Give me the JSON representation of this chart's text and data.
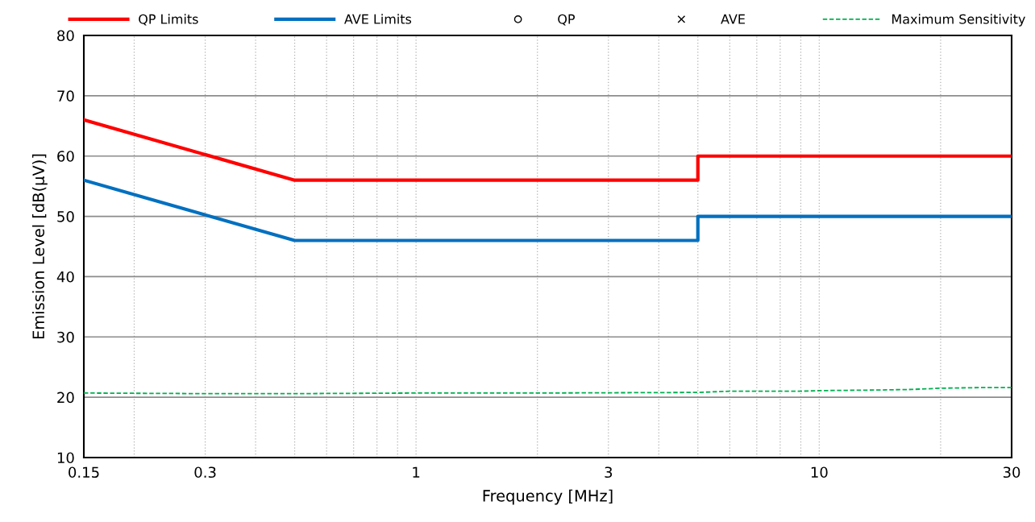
{
  "chart_data": {
    "type": "line",
    "xlabel": "Frequency [MHz]",
    "ylabel": "Emission Level [dB(µV)]",
    "log": "x",
    "xlim": [
      0.15,
      30
    ],
    "xticks": [
      0.15,
      0.3,
      1,
      3,
      10,
      30
    ],
    "ylim": [
      10,
      80
    ],
    "yticks": [
      10,
      20,
      30,
      40,
      50,
      60,
      70,
      80
    ],
    "grid": true,
    "legend": "top",
    "series": [
      {
        "name": "QP Limits",
        "color": "#ff0000",
        "x": [
          0.15,
          0.5,
          5,
          5,
          30
        ],
        "values": [
          66,
          56,
          56,
          60,
          60
        ]
      },
      {
        "name": "AVE Limits",
        "color": "#0070c0",
        "x": [
          0.15,
          0.5,
          5,
          5,
          30
        ],
        "values": [
          56,
          46,
          46,
          50,
          50
        ]
      },
      {
        "name": "QP",
        "type": "scatter",
        "marker": "circle",
        "color": "#000000"
      },
      {
        "name": "AVE",
        "type": "scatter",
        "marker": "cross",
        "color": "#000000"
      },
      {
        "name": "Maximum Sensitivity",
        "color": "#00b050",
        "line_style": "dashed",
        "x": [
          0.15,
          0.3,
          0.5,
          1,
          2,
          5,
          6,
          9,
          10,
          14,
          17,
          20,
          25,
          30
        ],
        "values": [
          20.7,
          20.6,
          20.6,
          20.7,
          20.7,
          20.8,
          21.0,
          21.0,
          21.1,
          21.2,
          21.3,
          21.5,
          21.6,
          21.6
        ]
      }
    ]
  }
}
